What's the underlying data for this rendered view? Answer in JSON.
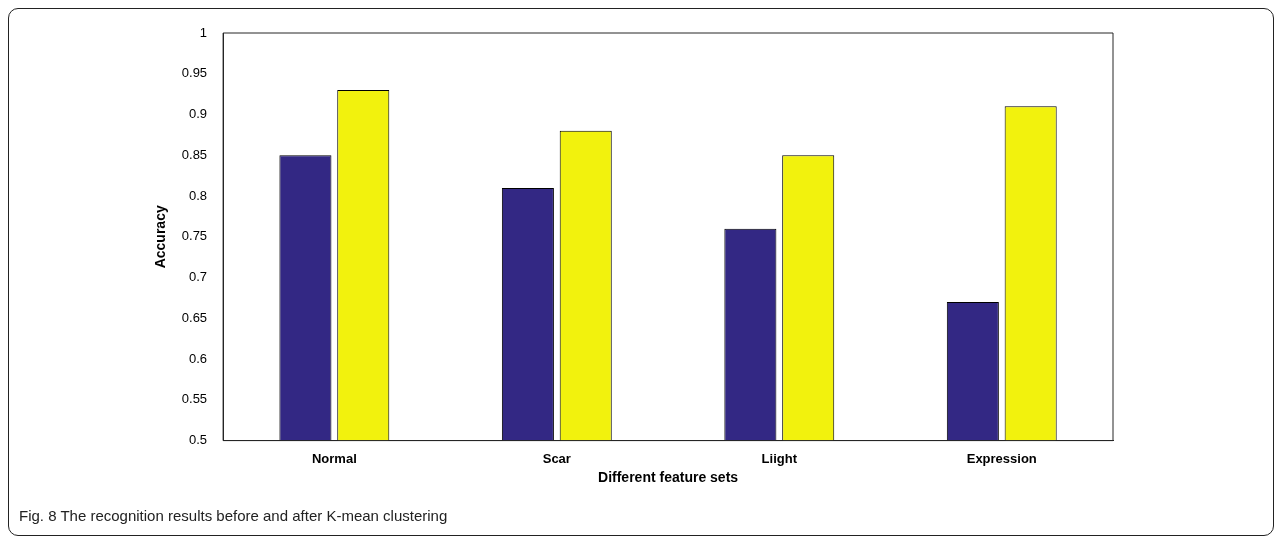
{
  "chart_data": {
    "type": "bar",
    "xlabel": "Different feature sets",
    "ylabel": "Accuracy",
    "categories": [
      "Normal",
      "Scar",
      "Liight",
      "Expression"
    ],
    "series": [
      {
        "color": "#332884",
        "values": [
          0.85,
          0.81,
          0.76,
          0.67
        ]
      },
      {
        "color": "#f2f20d",
        "values": [
          0.93,
          0.88,
          0.85,
          0.91
        ]
      }
    ],
    "ylim": [
      0.5,
      1
    ],
    "yticks": [
      0.5,
      0.55,
      0.6,
      0.65,
      0.7,
      0.75,
      0.8,
      0.85,
      0.9,
      0.95,
      1
    ],
    "annotations": [
      "Fig. 8 The recognition results before and after K-mean clustering"
    ]
  }
}
